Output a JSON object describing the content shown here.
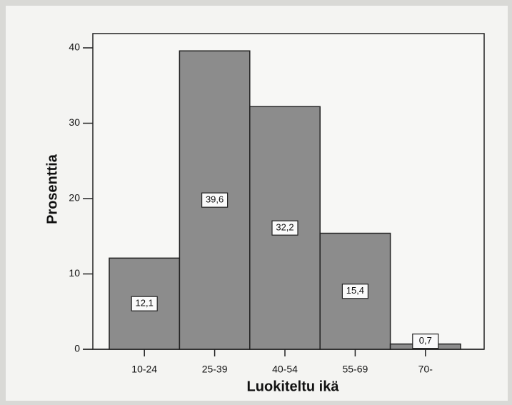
{
  "chart_data": {
    "type": "bar",
    "x_label": "Luokiteltu ikä",
    "y_label": "Prosenttia",
    "categories": [
      "10-24",
      "25-39",
      "40-54",
      "55-69",
      "70-"
    ],
    "values": [
      12.1,
      39.6,
      32.2,
      15.4,
      0.7
    ],
    "value_labels": [
      "12,1",
      "39,6",
      "32,2",
      "15,4",
      "0,7"
    ],
    "color": "#8c8c8c",
    "ylim": [
      0,
      40
    ],
    "yticks": [
      0,
      10,
      20,
      30,
      40
    ]
  }
}
